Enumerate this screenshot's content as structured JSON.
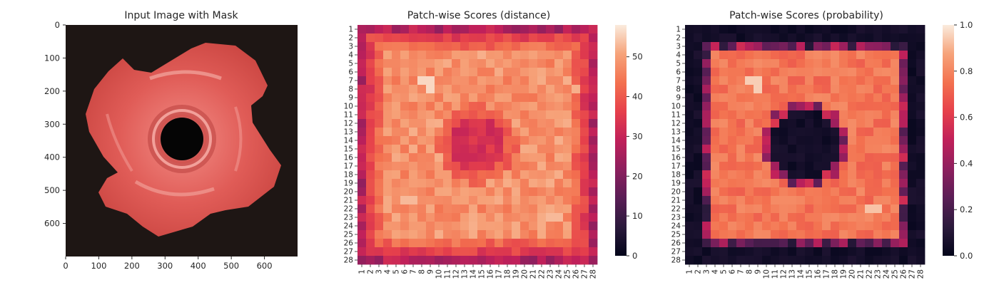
{
  "figure": {
    "panels": [
      {
        "title": "Input Image with Mask"
      },
      {
        "title": "Patch-wise Scores (distance)"
      },
      {
        "title": "Patch-wise Scores (probability)"
      }
    ]
  },
  "chart_data": [
    {
      "type": "image",
      "title": "Input Image with Mask",
      "xlabel": "",
      "ylabel": "",
      "xlim": [
        0,
        700
      ],
      "ylim": [
        700,
        0
      ],
      "xticks": [
        0,
        100,
        200,
        300,
        400,
        500,
        600
      ],
      "yticks": [
        0,
        100,
        200,
        300,
        400,
        500,
        600
      ],
      "description_colors": {
        "background": "#1e1614",
        "part": "#e05a55",
        "highlight": "#f4a39c",
        "hole": "#050505"
      }
    },
    {
      "type": "heatmap",
      "title": "Patch-wise Scores (distance)",
      "rows": 28,
      "cols": 28,
      "xticklabels": [
        "1",
        "2",
        "3",
        "4",
        "5",
        "6",
        "7",
        "8",
        "9",
        "10",
        "11",
        "12",
        "13",
        "14",
        "15",
        "16",
        "17",
        "18",
        "19",
        "20",
        "21",
        "22",
        "23",
        "24",
        "25",
        "26",
        "27",
        "28"
      ],
      "yticklabels": [
        "1",
        "2",
        "3",
        "4",
        "5",
        "6",
        "7",
        "8",
        "9",
        "10",
        "11",
        "12",
        "13",
        "14",
        "15",
        "16",
        "17",
        "18",
        "19",
        "20",
        "21",
        "22",
        "23",
        "24",
        "25",
        "26",
        "27",
        "28"
      ],
      "colorbar": {
        "min": 0,
        "max": 58,
        "ticks": [
          0,
          10,
          20,
          30,
          40,
          50
        ]
      },
      "colormap": "rocket",
      "value_model": {
        "edge_min": 26,
        "ring_peak": 52,
        "center_low": 33
      }
    },
    {
      "type": "heatmap",
      "title": "Patch-wise Scores (probability)",
      "rows": 28,
      "cols": 28,
      "xticklabels": [
        "1",
        "2",
        "3",
        "4",
        "5",
        "6",
        "7",
        "8",
        "9",
        "10",
        "11",
        "12",
        "13",
        "14",
        "15",
        "16",
        "17",
        "18",
        "19",
        "20",
        "21",
        "22",
        "23",
        "24",
        "25",
        "26",
        "27",
        "28"
      ],
      "yticklabels": [
        "1",
        "2",
        "3",
        "4",
        "5",
        "6",
        "7",
        "8",
        "9",
        "10",
        "11",
        "12",
        "13",
        "14",
        "15",
        "16",
        "17",
        "18",
        "19",
        "20",
        "21",
        "22",
        "23",
        "24",
        "25",
        "26",
        "27",
        "28"
      ],
      "colorbar": {
        "min": 0.0,
        "max": 1.0,
        "ticks": [
          "0.0",
          "0.2",
          "0.4",
          "0.6",
          "0.8",
          "1.0"
        ]
      },
      "colormap": "rocket"
    }
  ]
}
